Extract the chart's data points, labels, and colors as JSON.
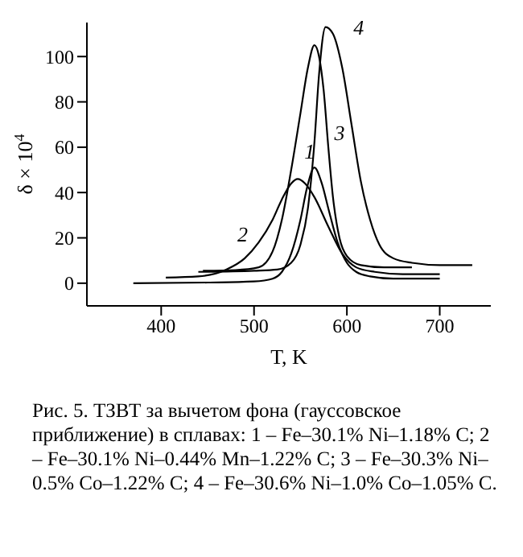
{
  "chart_data": {
    "type": "line",
    "xlabel": "T, K",
    "ylabel": "δ × 10$^{4}$",
    "xlim": [
      320,
      755
    ],
    "ylim": [
      -10,
      115
    ],
    "xticks": [
      400,
      500,
      600,
      700
    ],
    "yticks": [
      0,
      20,
      40,
      60,
      80,
      100
    ],
    "grid": false,
    "legend": false,
    "marker": "none",
    "line_style": "solid",
    "series": [
      {
        "name": "1",
        "color": "#000000",
        "x": [
          370,
          450,
          500,
          520,
          530,
          540,
          550,
          557,
          565,
          573,
          580,
          590,
          600,
          610,
          625,
          650,
          700
        ],
        "values": [
          0,
          0.3,
          0.8,
          2,
          5,
          13,
          28,
          42,
          51,
          44,
          33,
          18,
          9,
          5,
          3,
          2,
          2
        ]
      },
      {
        "name": "2",
        "color": "#000000",
        "x": [
          405,
          440,
          470,
          490,
          505,
          520,
          530,
          540,
          547,
          555,
          565,
          580,
          595,
          610,
          630,
          660,
          700
        ],
        "values": [
          2.5,
          3,
          6,
          11,
          18,
          28,
          37,
          44,
          46,
          44,
          38,
          25,
          13,
          7,
          5,
          4,
          4
        ]
      },
      {
        "name": "3",
        "color": "#000000",
        "x": [
          445,
          480,
          505,
          520,
          530,
          540,
          550,
          558,
          565,
          570,
          575,
          580,
          585,
          592,
          600,
          615,
          640,
          670
        ],
        "values": [
          5.5,
          5.8,
          7,
          14,
          28,
          50,
          75,
          95,
          105,
          100,
          85,
          60,
          38,
          20,
          12,
          8,
          7,
          7
        ]
      },
      {
        "name": "4",
        "color": "#000000",
        "x": [
          440,
          500,
          525,
          540,
          550,
          558,
          565,
          570,
          577,
          585,
          595,
          605,
          615,
          625,
          635,
          650,
          670,
          700,
          735
        ],
        "values": [
          5,
          5.5,
          6,
          9,
          17,
          33,
          62,
          92,
          113,
          110,
          95,
          70,
          45,
          28,
          17,
          11,
          9,
          8,
          8
        ]
      }
    ],
    "annotations": [
      "Рис. 5. ТЗВТ за вычетом фона (гауссовское приближение) в сплавах: 1 – Fe–30.1% Ni–1.18% C; 2 – Fe–30.1% Ni–0.44% Mn–1.22% C; 3 – Fe–30.3% Ni–0.5% Co–1.22% C; 4 – Fe–30.6% Ni–1.0% Co–1.05% C."
    ]
  }
}
